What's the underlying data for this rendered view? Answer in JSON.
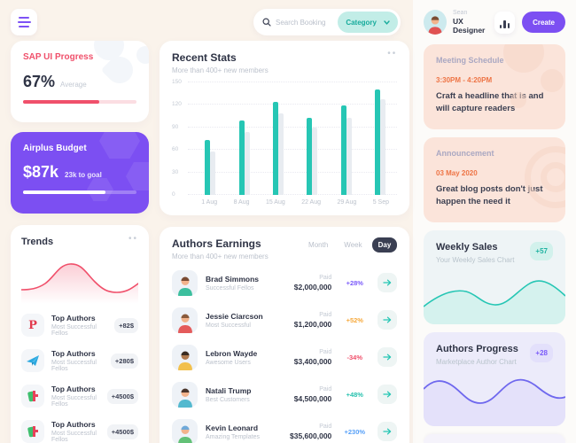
{
  "topbar": {
    "search_placeholder": "Search Booking",
    "category_label": "Category",
    "menu_dots": "••"
  },
  "profile": {
    "name": "Sean",
    "role": "UX Designer",
    "create_label": "Create"
  },
  "sap_progress": {
    "title": "SAP UI Progress",
    "value": "67%",
    "label": "Average",
    "percent": 67
  },
  "airplus_budget": {
    "title": "Airplus Budget",
    "value": "$87k",
    "goal": "23k to goal",
    "percent": 73
  },
  "recent_stats": {
    "title": "Recent Stats",
    "subtitle": "More than 400+ new members"
  },
  "trends": {
    "title": "Trends",
    "items": [
      {
        "icon": "pinterest-icon",
        "name": "Top Authors",
        "subtitle": "Most Successful Fellos",
        "badge": "+82$"
      },
      {
        "icon": "telegram-icon",
        "name": "Top Authors",
        "subtitle": "Most Successful Fellos",
        "badge": "+280$"
      },
      {
        "icon": "app-icon",
        "name": "Top Authors",
        "subtitle": "Most Successful Fellos",
        "badge": "+4500$"
      },
      {
        "icon": "app-icon",
        "name": "Top Authors",
        "subtitle": "Most Successful Fellos",
        "badge": "+4500$"
      }
    ]
  },
  "authors_earnings": {
    "title": "Authors Earnings",
    "subtitle": "More than 400+ new members",
    "tabs": [
      "Month",
      "Week",
      "Day"
    ],
    "active_tab": "Day",
    "paid_label": "Paid",
    "rows": [
      {
        "name": "Brad Simmons",
        "subtitle": "Successful Fellos",
        "amount": "$2,000,000",
        "percent": "+28%",
        "pct_style": "color:#7b5bfa",
        "avatar_style": "--skin:#f2b38c;--hair:#7a4b33;--shirt:#3cbf9e"
      },
      {
        "name": "Jessie Ciarcson",
        "subtitle": "Most Successful",
        "amount": "$1,200,000",
        "percent": "+52%",
        "pct_style": "color:#f6a93c",
        "avatar_style": "--skin:#f2b38c;--hair:#8a5a3b;--shirt:#e45b5b"
      },
      {
        "name": "Lebron Wayde",
        "subtitle": "Awesome Users",
        "amount": "$3,400,000",
        "percent": "-34%",
        "pct_style": "color:#f0506b",
        "avatar_style": "--skin:#b07a4f;--hair:#3a2c22;--shirt:#f2c04d"
      },
      {
        "name": "Natali Trump",
        "subtitle": "Best Customers",
        "amount": "$4,500,000",
        "percent": "+48%",
        "pct_style": "color:#27c1ae",
        "avatar_style": "--skin:#f2b38c;--hair:#4a352b;--shirt:#53b9cf"
      },
      {
        "name": "Kevin Leonard",
        "subtitle": "Amazing Templates",
        "amount": "$35,600,000",
        "percent": "+230%",
        "pct_style": "color:#58a1f8",
        "avatar_style": "--skin:#f2b38c;--hair:#6fa9d9;--shirt:#63c177"
      }
    ]
  },
  "right": {
    "meeting": {
      "title": "Meeting Schedule",
      "time": "3:30PM - 4:20PM",
      "text": "Craft a headline that is  and will capture readers"
    },
    "announcement": {
      "title": "Announcement",
      "date": "03 May 2020",
      "text": "Great blog posts don't just happen the need it"
    },
    "weekly_sales": {
      "title": "Weekly Sales",
      "subtitle": "Your Weekly Sales Chart",
      "badge": "+57"
    },
    "authors_progress": {
      "title": "Authors Progress",
      "subtitle": "Marketplace Author Chart",
      "badge": "+28"
    }
  },
  "colors": {
    "accent_purple": "#7c4ff2",
    "accent_teal": "#26c6b4",
    "accent_red": "#f0506b",
    "accent_orange": "#ee7445",
    "bar_secondary": "#e8ecf1"
  },
  "chart_data": [
    {
      "type": "bar",
      "title": "Recent Stats",
      "subtitle": "More than 400+ new members",
      "categories": [
        "1 Aug",
        "8 Aug",
        "15 Aug",
        "22 Aug",
        "29 Aug",
        "5 Sep"
      ],
      "series": [
        {
          "name": "current",
          "color": "#26c6b4",
          "values": [
            73,
            98,
            123,
            102,
            118,
            140
          ]
        },
        {
          "name": "previous",
          "color": "#e8ecf1",
          "values": [
            58,
            83,
            108,
            89,
            102,
            127
          ]
        }
      ],
      "ylim": [
        0,
        150
      ],
      "yticks": [
        0,
        30,
        60,
        90,
        120,
        150
      ],
      "grid": true,
      "legend": false
    },
    {
      "type": "area",
      "title": "Trends",
      "x": [
        0,
        1,
        2,
        3,
        4,
        5,
        6,
        7,
        8,
        9
      ],
      "values": [
        30,
        31,
        38,
        62,
        72,
        64,
        36,
        28,
        30,
        42
      ],
      "color": "#f0506b",
      "axes": false
    },
    {
      "type": "area",
      "title": "Weekly Sales",
      "x": [
        0,
        1,
        2,
        3,
        4,
        5,
        6,
        7,
        8
      ],
      "values": [
        28,
        45,
        52,
        44,
        32,
        35,
        58,
        66,
        42
      ],
      "color": "#26c6b4",
      "axes": false
    },
    {
      "type": "area",
      "title": "Authors Progress",
      "x": [
        0,
        1,
        2,
        3,
        4,
        5,
        6,
        7,
        8,
        9
      ],
      "values": [
        58,
        70,
        55,
        38,
        40,
        60,
        70,
        58,
        40,
        46
      ],
      "color": "#6f68ee",
      "axes": false
    }
  ]
}
